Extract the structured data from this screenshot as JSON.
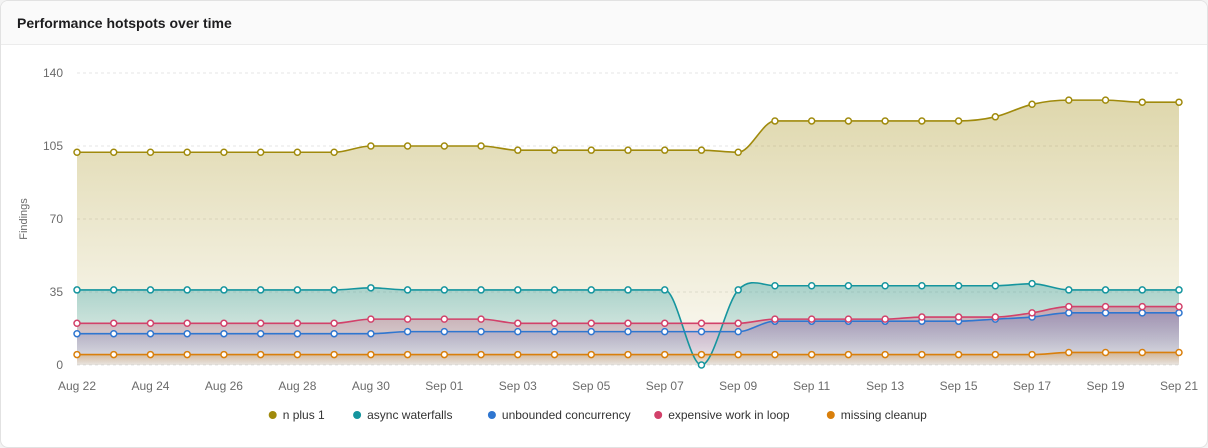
{
  "card": {
    "title": "Performance hotspots over time"
  },
  "chart_data": {
    "type": "area",
    "title": "Performance hotspots over time",
    "xlabel": "",
    "ylabel": "Findings",
    "ylim": [
      0,
      140
    ],
    "yticks": [
      0,
      35,
      70,
      105,
      140
    ],
    "grid": true,
    "legend_position": "bottom",
    "x": [
      "Aug 22",
      "Aug 23",
      "Aug 24",
      "Aug 25",
      "Aug 26",
      "Aug 27",
      "Aug 28",
      "Aug 29",
      "Aug 30",
      "Aug 31",
      "Sep 01",
      "Sep 02",
      "Sep 03",
      "Sep 04",
      "Sep 05",
      "Sep 06",
      "Sep 07",
      "Sep 08",
      "Sep 09",
      "Sep 10",
      "Sep 11",
      "Sep 12",
      "Sep 13",
      "Sep 14",
      "Sep 15",
      "Sep 16",
      "Sep 17",
      "Sep 18",
      "Sep 19",
      "Sep 20",
      "Sep 21"
    ],
    "xtick_labels": [
      "Aug 22",
      "Aug 24",
      "Aug 26",
      "Aug 28",
      "Aug 30",
      "Sep 01",
      "Sep 03",
      "Sep 05",
      "Sep 07",
      "Sep 09",
      "Sep 11",
      "Sep 13",
      "Sep 15",
      "Sep 17",
      "Sep 19",
      "Sep 21"
    ],
    "series": [
      {
        "name": "n plus 1",
        "color": "#a08a0c",
        "values": [
          102,
          102,
          102,
          102,
          102,
          102,
          102,
          102,
          105,
          105,
          105,
          105,
          103,
          103,
          103,
          103,
          103,
          103,
          102,
          117,
          117,
          117,
          117,
          117,
          117,
          119,
          125,
          127,
          127,
          126,
          126
        ]
      },
      {
        "name": "async waterfalls",
        "color": "#15959e",
        "values": [
          36,
          36,
          36,
          36,
          36,
          36,
          36,
          36,
          37,
          36,
          36,
          36,
          36,
          36,
          36,
          36,
          36,
          0,
          36,
          38,
          38,
          38,
          38,
          38,
          38,
          38,
          39,
          36,
          36,
          36,
          36
        ]
      },
      {
        "name": "unbounded concurrency",
        "color": "#2f76d0",
        "values": [
          15,
          15,
          15,
          15,
          15,
          15,
          15,
          15,
          15,
          16,
          16,
          16,
          16,
          16,
          16,
          16,
          16,
          16,
          16,
          21,
          21,
          21,
          21,
          21,
          21,
          22,
          23,
          25,
          25,
          25,
          25
        ]
      },
      {
        "name": "expensive work in loop",
        "color": "#d2416a",
        "values": [
          20,
          20,
          20,
          20,
          20,
          20,
          20,
          20,
          22,
          22,
          22,
          22,
          20,
          20,
          20,
          20,
          20,
          20,
          20,
          22,
          22,
          22,
          22,
          23,
          23,
          23,
          25,
          28,
          28,
          28,
          28
        ]
      },
      {
        "name": "missing cleanup",
        "color": "#d97f0b",
        "values": [
          5,
          5,
          5,
          5,
          5,
          5,
          5,
          5,
          5,
          5,
          5,
          5,
          5,
          5,
          5,
          5,
          5,
          5,
          5,
          5,
          5,
          5,
          5,
          5,
          5,
          5,
          5,
          6,
          6,
          6,
          6
        ]
      }
    ]
  }
}
